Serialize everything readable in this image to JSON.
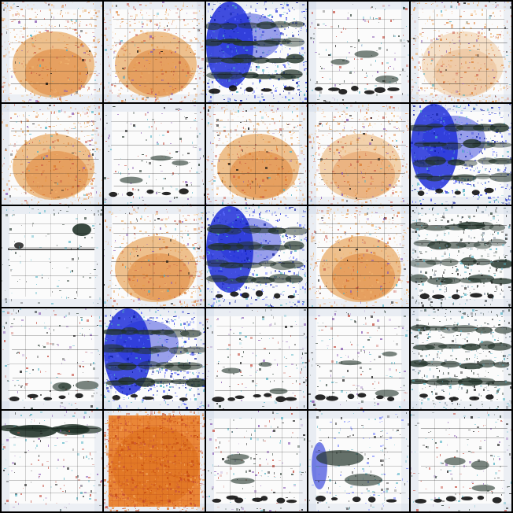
{
  "image": {
    "grid_rows": 5,
    "grid_cols": 5,
    "background_color": "#000000",
    "tiles": [
      {
        "style": "warm"
      },
      {
        "style": "warm"
      },
      {
        "style": "blue"
      },
      {
        "style": "white"
      },
      {
        "style": "white-warm"
      },
      {
        "style": "warm"
      },
      {
        "style": "white"
      },
      {
        "style": "warm"
      },
      {
        "style": "warm-light"
      },
      {
        "style": "blue"
      },
      {
        "style": "dark-sparse"
      },
      {
        "style": "warm"
      },
      {
        "style": "blue"
      },
      {
        "style": "warm"
      },
      {
        "style": "dark"
      },
      {
        "style": "white"
      },
      {
        "style": "blue"
      },
      {
        "style": "white"
      },
      {
        "style": "white"
      },
      {
        "style": "dark"
      },
      {
        "style": "dark-top"
      },
      {
        "style": "orange-full"
      },
      {
        "style": "white"
      },
      {
        "style": "blue-left"
      },
      {
        "style": "white"
      }
    ],
    "palette": {
      "white": "#fbfbfb",
      "frame_light": "#c9d5e5",
      "warm": "#e69a45",
      "warm_dark": "#d96a16",
      "orange_full": "#e87921",
      "blue": "#1f2ed8",
      "dark": "#23352b",
      "ink": "#111111",
      "cyan": "#4fb2c4",
      "red": "#c44a3c",
      "purple": "#8a5bb5"
    }
  }
}
